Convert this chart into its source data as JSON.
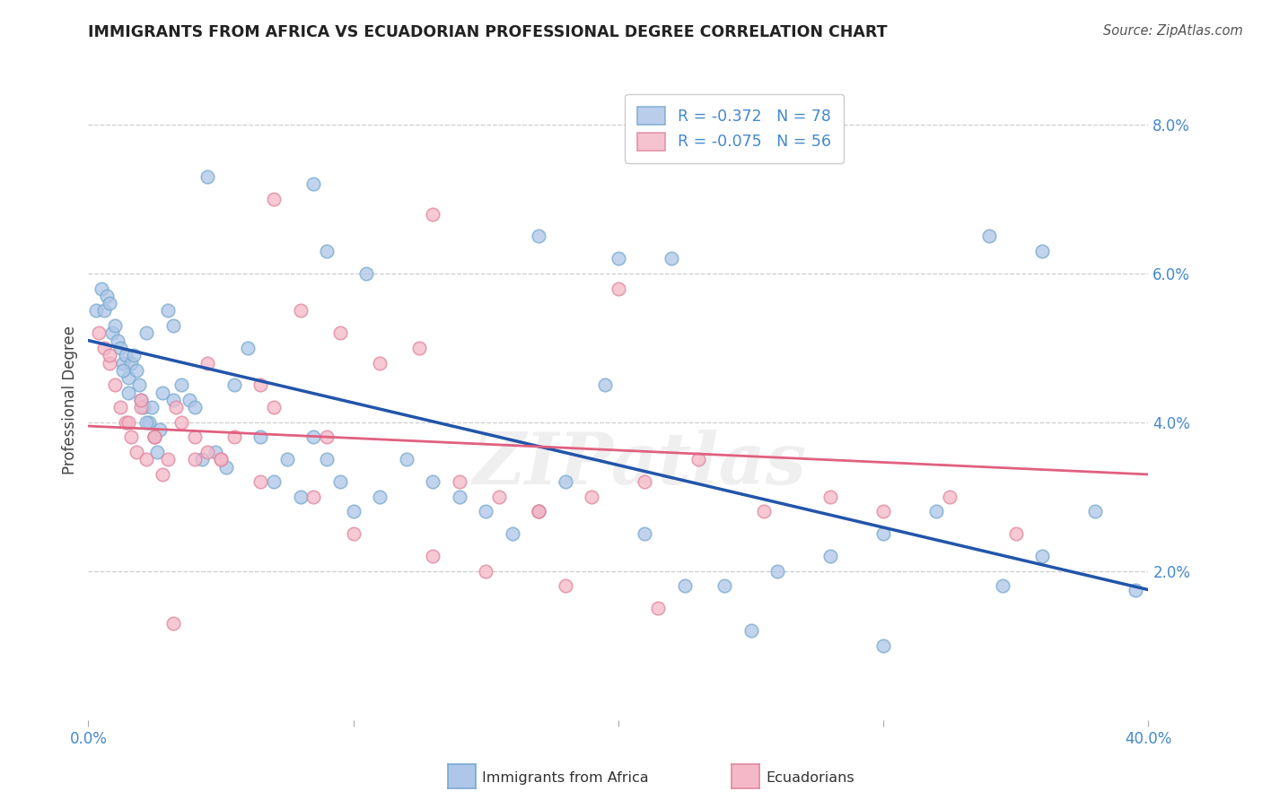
{
  "title": "IMMIGRANTS FROM AFRICA VS ECUADORIAN PROFESSIONAL DEGREE CORRELATION CHART",
  "source": "Source: ZipAtlas.com",
  "ylabel": "Professional Degree",
  "xlim": [
    0.0,
    40.0
  ],
  "ylim": [
    0.0,
    8.6
  ],
  "yticks": [
    0.0,
    2.0,
    4.0,
    6.0,
    8.0
  ],
  "grid_color": "#cccccc",
  "background_color": "#ffffff",
  "legend_r1": "R = -0.372",
  "legend_n1": "N = 78",
  "legend_r2": "R = -0.075",
  "legend_n2": "N = 56",
  "blue_color": "#aec6e8",
  "blue_edge_color": "#7aaacf",
  "pink_color": "#f4b8c8",
  "pink_edge_color": "#e088a0",
  "blue_line_color": "#2255aa",
  "pink_line_color": "#e06080",
  "text_color": "#4488cc",
  "watermark": "ZIPatlas",
  "blue_line_x0": 0.0,
  "blue_line_y0": 5.1,
  "blue_line_x1": 40.0,
  "blue_line_y1": 1.75,
  "pink_line_x0": 0.0,
  "pink_line_y0": 3.95,
  "pink_line_x1": 40.0,
  "pink_line_y1": 3.3,
  "blue_x": [
    0.3,
    0.5,
    0.6,
    0.7,
    0.8,
    0.9,
    1.0,
    1.1,
    1.2,
    1.3,
    1.4,
    1.5,
    1.6,
    1.7,
    1.8,
    1.9,
    2.0,
    2.1,
    2.2,
    2.3,
    2.4,
    2.5,
    2.6,
    2.8,
    3.0,
    3.2,
    3.5,
    3.8,
    4.0,
    4.3,
    4.8,
    5.2,
    5.5,
    6.0,
    6.5,
    7.0,
    7.5,
    8.0,
    8.5,
    9.0,
    9.5,
    10.0,
    11.0,
    12.0,
    13.0,
    14.0,
    15.0,
    16.0,
    17.0,
    18.0,
    19.5,
    21.0,
    22.5,
    24.0,
    26.0,
    28.0,
    30.0,
    32.0,
    34.5,
    36.0,
    38.0,
    39.5,
    4.5,
    9.0,
    17.0,
    20.0,
    22.0,
    34.0,
    36.0,
    8.5,
    10.5,
    25.0,
    30.0,
    3.2,
    1.3,
    1.5,
    2.2,
    2.7
  ],
  "blue_y": [
    5.5,
    5.8,
    5.5,
    5.7,
    5.6,
    5.2,
    5.3,
    5.1,
    5.0,
    4.8,
    4.9,
    4.6,
    4.8,
    4.9,
    4.7,
    4.5,
    4.3,
    4.2,
    5.2,
    4.0,
    4.2,
    3.8,
    3.6,
    4.4,
    5.5,
    5.3,
    4.5,
    4.3,
    4.2,
    3.5,
    3.6,
    3.4,
    4.5,
    5.0,
    3.8,
    3.2,
    3.5,
    3.0,
    3.8,
    3.5,
    3.2,
    2.8,
    3.0,
    3.5,
    3.2,
    3.0,
    2.8,
    2.5,
    2.8,
    3.2,
    4.5,
    2.5,
    1.8,
    1.8,
    2.0,
    2.2,
    2.5,
    2.8,
    1.8,
    2.2,
    2.8,
    1.75,
    7.3,
    6.3,
    6.5,
    6.2,
    6.2,
    6.5,
    6.3,
    7.2,
    6.0,
    1.2,
    1.0,
    4.3,
    4.7,
    4.4,
    4.0,
    3.9
  ],
  "pink_x": [
    0.4,
    0.6,
    0.8,
    1.0,
    1.2,
    1.4,
    1.6,
    1.8,
    2.0,
    2.2,
    2.5,
    2.8,
    3.0,
    3.3,
    4.0,
    4.5,
    5.0,
    5.5,
    6.5,
    7.0,
    8.0,
    9.5,
    11.0,
    12.5,
    14.0,
    15.5,
    17.0,
    19.0,
    21.0,
    23.0,
    25.5,
    28.0,
    30.0,
    32.5,
    35.0,
    1.5,
    2.0,
    2.5,
    3.5,
    4.0,
    5.0,
    6.5,
    8.5,
    10.0,
    13.0,
    15.0,
    18.0,
    21.5,
    7.0,
    13.0,
    20.0,
    4.5,
    9.0,
    17.0,
    3.2,
    0.8
  ],
  "pink_y": [
    5.2,
    5.0,
    4.8,
    4.5,
    4.2,
    4.0,
    3.8,
    3.6,
    4.2,
    3.5,
    3.8,
    3.3,
    3.5,
    4.2,
    3.8,
    3.6,
    3.5,
    3.8,
    4.5,
    4.2,
    5.5,
    5.2,
    4.8,
    5.0,
    3.2,
    3.0,
    2.8,
    3.0,
    3.2,
    3.5,
    2.8,
    3.0,
    2.8,
    3.0,
    2.5,
    4.0,
    4.3,
    3.8,
    4.0,
    3.5,
    3.5,
    3.2,
    3.0,
    2.5,
    2.2,
    2.0,
    1.8,
    1.5,
    7.0,
    6.8,
    5.8,
    4.8,
    3.8,
    2.8,
    1.3,
    4.9
  ]
}
